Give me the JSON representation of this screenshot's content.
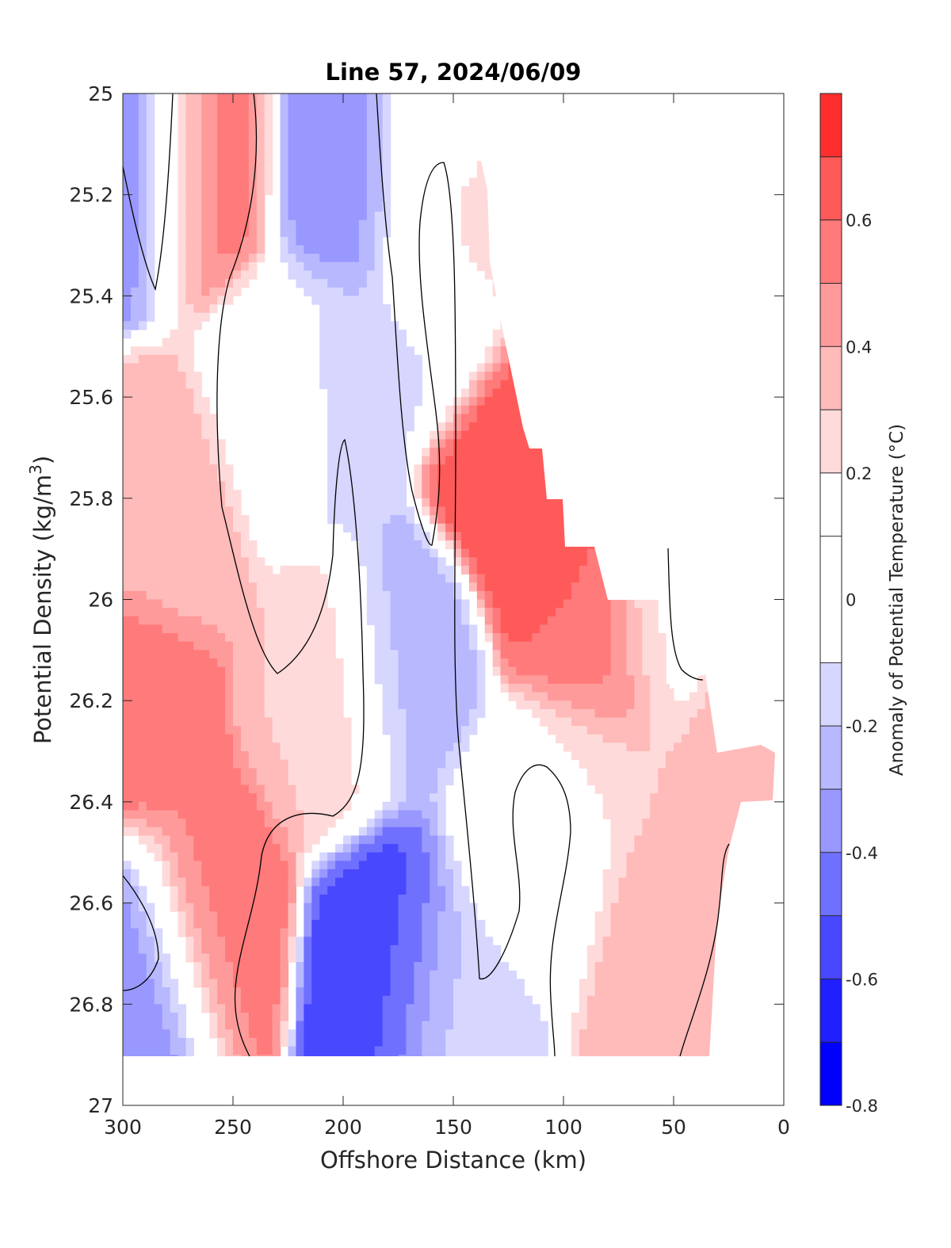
{
  "chart_data": {
    "type": "heatmap",
    "title": "Line 57, 2024/06/09",
    "xlabel": "Offshore Distance (km)",
    "ylabel": "Potential Density (kg/m",
    "ylabel_superscript": "3",
    "ylabel_suffix": ")",
    "xlim": [
      300,
      0
    ],
    "ylim": [
      25,
      27
    ],
    "y_reversed": true,
    "x_ticks": [
      "300",
      "250",
      "200",
      "150",
      "100",
      "50",
      "0"
    ],
    "y_ticks": [
      "25",
      "25.2",
      "25.4",
      "25.6",
      "25.8",
      "26",
      "26.2",
      "26.4",
      "26.6",
      "26.8",
      "27"
    ],
    "colorbar": {
      "label": "Anomaly of Potential Temperature (°C)",
      "range": [
        -0.8,
        0.8
      ],
      "levels": [
        -0.8,
        -0.7,
        -0.6,
        -0.5,
        -0.4,
        -0.3,
        -0.2,
        -0.1,
        0.1,
        0.2,
        0.3,
        0.4,
        0.5,
        0.6,
        0.7,
        0.8
      ],
      "tick_labels": [
        "0.6",
        "0.4",
        "0.2",
        "0",
        "-0.2",
        "-0.4",
        "-0.6",
        "-0.8"
      ],
      "tick_values": [
        0.6,
        0.4,
        0.2,
        0,
        -0.2,
        -0.4,
        -0.6,
        -0.8
      ],
      "colors": [
        "#0000ff",
        "#2020ff",
        "#4848ff",
        "#7070ff",
        "#9898ff",
        "#b8b8ff",
        "#d6d6ff",
        "#ffffff",
        "#ffffff",
        "#ffdada",
        "#ffbaba",
        "#ff9a9a",
        "#ff7a7a",
        "#ff5a5a",
        "#ff2e2e",
        "#ff0000"
      ]
    },
    "zero_contour": true,
    "data_extent_note": "",
    "anomaly_features": [
      {
        "x": 292,
        "y": 25.15,
        "value": -0.4
      },
      {
        "x": 292,
        "y": 26.7,
        "value": -0.4
      },
      {
        "x": 265,
        "y": 25.15,
        "value": 0.55
      },
      {
        "x": 295,
        "y": 26.25,
        "value": 0.55
      },
      {
        "x": 265,
        "y": 26.6,
        "value": 0.55
      },
      {
        "x": 278,
        "y": 25.8,
        "value": 0.35
      },
      {
        "x": 230,
        "y": 25.6,
        "value": 0.05
      },
      {
        "x": 200,
        "y": 25.15,
        "value": -0.35
      },
      {
        "x": 210,
        "y": 25.6,
        "value": -0.15
      },
      {
        "x": 205,
        "y": 26.2,
        "value": 0.3
      },
      {
        "x": 175,
        "y": 26.7,
        "value": -0.55
      },
      {
        "x": 175,
        "y": 26.15,
        "value": -0.25
      },
      {
        "x": 155,
        "y": 25.4,
        "value": -0.15
      },
      {
        "x": 160,
        "y": 25.15,
        "value": 0.05
      },
      {
        "x": 145,
        "y": 25.3,
        "value": 0.4
      },
      {
        "x": 120,
        "y": 25.7,
        "value": 0.7
      },
      {
        "x": 100,
        "y": 25.9,
        "value": 0.65
      },
      {
        "x": 85,
        "y": 26.05,
        "value": 0.55
      },
      {
        "x": 95,
        "y": 26.4,
        "value": 0.25
      },
      {
        "x": 60,
        "y": 26.65,
        "value": 0.35
      },
      {
        "x": 150,
        "y": 26.75,
        "value": -0.15
      },
      {
        "x": 120,
        "y": 26.5,
        "value": 0.05
      },
      {
        "x": 110,
        "y": 26.5,
        "value": -0.15
      },
      {
        "x": 55,
        "y": 26.0,
        "value": 0.15
      },
      {
        "x": 10,
        "y": 26.33,
        "value": 0.4
      }
    ]
  }
}
